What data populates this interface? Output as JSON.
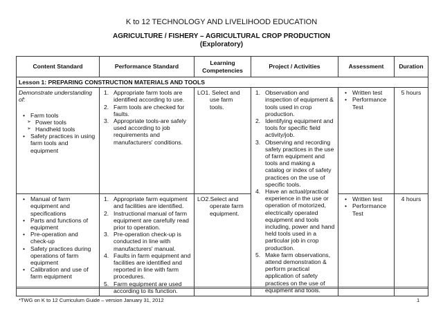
{
  "title": "K to 12 TECHNOLOGY AND LIVELIHOOD EDUCATION",
  "subtitle": "AGRICULTURE / FISHERY – AGRICULTURAL CROP PRODUCTION",
  "subtitle2": "(Exploratory)",
  "headers": [
    "Content Standard",
    "Performance Standard",
    "Learning Competencies",
    "Project / Activities",
    "Assessment",
    "Duration"
  ],
  "lesson": "Lesson 1:  PREPARING CONSTRUCTION MATERIALS AND TOOLS",
  "demonstrate": "Demonstrate understanding of:",
  "rows": [
    {
      "content": [
        "Farm tools",
        "Power tools",
        "Handheld tools",
        "Safety practices in using farm tools and equipment"
      ],
      "performance": [
        "Appropriate farm tools are identified according to use.",
        "Farm tools are checked for faults.",
        "Appropriate tools-are safely used according to job requirements and manufacturers' conditions."
      ],
      "competency": "LO1. Select and use farm tools.",
      "assessment": [
        "Written test",
        "Performance Test"
      ],
      "duration": "5 hours"
    },
    {
      "content": [
        "Manual of farm equipment and specifications",
        "Parts and functions of equipment",
        "Pre-operation and check-up",
        "Safety practices during operations of farm equipment",
        "Calibration and use of farm equipment"
      ],
      "performance": [
        "Appropriate farm equipment and facilities are identified.",
        "Instructional manual of farm equipment are carefully read prior to operation.",
        "Pre-operation check-up is conducted in line with manufacturers' manual.",
        "Faults in farm equipment and facilities are identified and reported in line with farm procedures.",
        "Farm equipment are used according to its function."
      ],
      "competency": "LO2.Select and operate farm equipment.",
      "assessment": [
        "Written test",
        "Performance Test"
      ],
      "duration": "4 hours"
    }
  ],
  "activities": [
    "Observation and inspection of equipment & tools used in crop production.",
    "Identifying equipment and tools for specific field activity/job.",
    "Observing and recording safety practices in the use of farm equipment and tools and making a catalog or index of safety practices on the use of specific tools.",
    "Have an actual/practical experience in the use or operation of motorized, electrically operated equipment and tools including, power and hand held tools used in a particular job in crop production.",
    "Make farm observations, attend demonstration & perform practical application of safety practices on the use of equipment and tools."
  ],
  "footer": "*TWG on K to 12 Curriculum Guide – version January 31, 2012",
  "page": "1"
}
